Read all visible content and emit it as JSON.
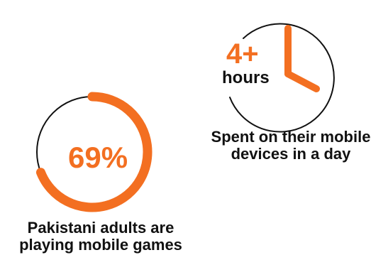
{
  "colors": {
    "accent": "#f36f21",
    "outline": "#111111",
    "text": "#111111"
  },
  "stats": {
    "adults_gaming": {
      "value_label": "69%",
      "percent": 69,
      "caption_line1": "Pakistani adults are",
      "caption_line2": "playing mobile games"
    },
    "screen_time": {
      "value_label": "4+",
      "unit_label": "hours",
      "clock_icon": "clock-icon",
      "caption_line1": "Spent on their mobile",
      "caption_line2": "devices in a day"
    }
  }
}
